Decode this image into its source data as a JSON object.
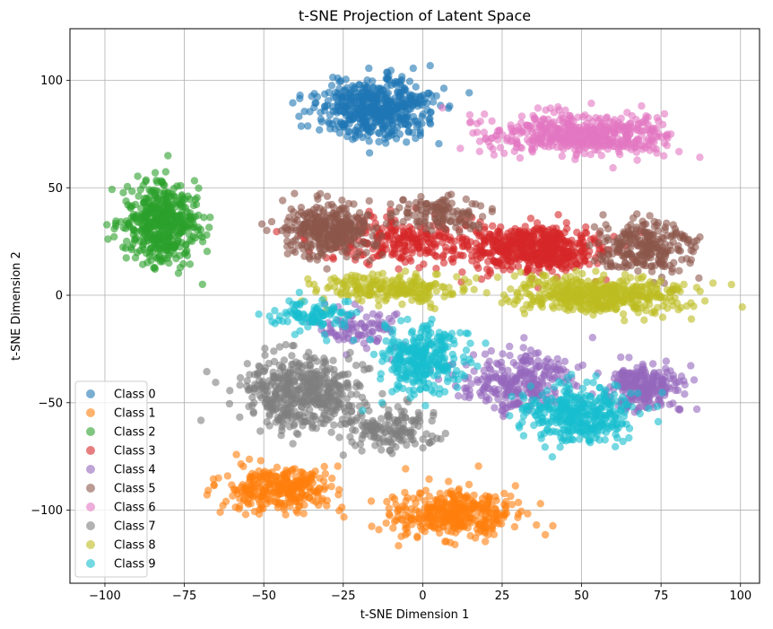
{
  "chart_data": {
    "type": "scatter",
    "title": "t-SNE Projection of Latent Space",
    "xlabel": "t-SNE Dimension 1",
    "ylabel": "t-SNE Dimension 2",
    "xlim": [
      -111,
      106
    ],
    "ylim": [
      -134,
      124
    ],
    "xticks": [
      -100,
      -75,
      -50,
      -25,
      0,
      25,
      50,
      75,
      100
    ],
    "yticks": [
      -100,
      -50,
      0,
      50,
      100
    ],
    "xtick_labels": [
      "−100",
      "−75",
      "−50",
      "−25",
      "0",
      "25",
      "50",
      "75",
      "100"
    ],
    "ytick_labels": [
      "−100",
      "−50",
      "0",
      "50",
      "100"
    ],
    "grid": true,
    "legend_position": "lower-left",
    "point_alpha": 0.6,
    "series": [
      {
        "name": "Class 0",
        "color": "#1f77b4",
        "clusters": [
          {
            "cx": -15,
            "cy": 87,
            "sx": 15,
            "sy": 11,
            "n": 520
          }
        ]
      },
      {
        "name": "Class 1",
        "color": "#ff7f0e",
        "clusters": [
          {
            "cx": -45,
            "cy": -90,
            "sx": 15,
            "sy": 9,
            "n": 300
          },
          {
            "cx": 10,
            "cy": -102,
            "sx": 16,
            "sy": 9,
            "n": 360
          }
        ]
      },
      {
        "name": "Class 2",
        "color": "#2ca02c",
        "clusters": [
          {
            "cx": -82,
            "cy": 33,
            "sx": 10,
            "sy": 15,
            "n": 480
          }
        ]
      },
      {
        "name": "Class 3",
        "color": "#d62728",
        "clusters": [
          {
            "cx": 35,
            "cy": 22,
            "sx": 18,
            "sy": 9,
            "n": 520
          },
          {
            "cx": -5,
            "cy": 25,
            "sx": 20,
            "sy": 9,
            "n": 240
          }
        ]
      },
      {
        "name": "Class 4",
        "color": "#9467bd",
        "clusters": [
          {
            "cx": 70,
            "cy": -42,
            "sx": 10,
            "sy": 8,
            "n": 240
          },
          {
            "cx": 30,
            "cy": -40,
            "sx": 14,
            "sy": 11,
            "n": 260
          },
          {
            "cx": -20,
            "cy": -15,
            "sx": 10,
            "sy": 7,
            "n": 90
          }
        ]
      },
      {
        "name": "Class 5",
        "color": "#8c564b",
        "clusters": [
          {
            "cx": -30,
            "cy": 30,
            "sx": 12,
            "sy": 11,
            "n": 340
          },
          {
            "cx": 70,
            "cy": 22,
            "sx": 12,
            "sy": 10,
            "n": 260
          },
          {
            "cx": 5,
            "cy": 38,
            "sx": 12,
            "sy": 6,
            "n": 120
          }
        ]
      },
      {
        "name": "Class 6",
        "color": "#e377c2",
        "clusters": [
          {
            "cx": 50,
            "cy": 75,
            "sx": 24,
            "sy": 8,
            "n": 520
          }
        ]
      },
      {
        "name": "Class 7",
        "color": "#7f7f7f",
        "clusters": [
          {
            "cx": -38,
            "cy": -45,
            "sx": 15,
            "sy": 14,
            "n": 460
          },
          {
            "cx": -10,
            "cy": -62,
            "sx": 12,
            "sy": 8,
            "n": 160
          }
        ]
      },
      {
        "name": "Class 8",
        "color": "#bcbd22",
        "clusters": [
          {
            "cx": 55,
            "cy": 0,
            "sx": 22,
            "sy": 7,
            "n": 460
          },
          {
            "cx": -10,
            "cy": 3,
            "sx": 18,
            "sy": 6,
            "n": 220
          }
        ]
      },
      {
        "name": "Class 9",
        "color": "#17becf",
        "clusters": [
          {
            "cx": 50,
            "cy": -55,
            "sx": 14,
            "sy": 11,
            "n": 360
          },
          {
            "cx": 0,
            "cy": -30,
            "sx": 11,
            "sy": 13,
            "n": 300
          },
          {
            "cx": -35,
            "cy": -10,
            "sx": 10,
            "sy": 6,
            "n": 100
          }
        ]
      }
    ]
  }
}
